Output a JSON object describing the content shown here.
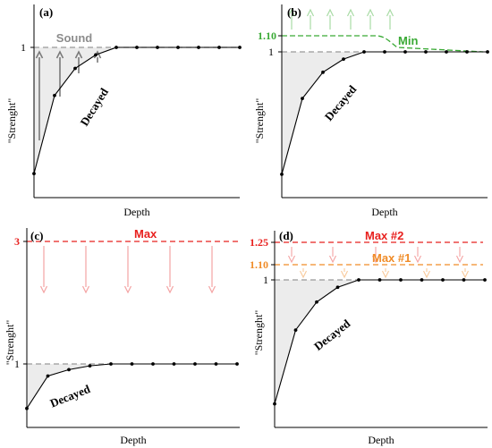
{
  "panels": [
    {
      "id": "a",
      "label": "(a)",
      "ylabel": "\"Strenght\"",
      "xlabel": "Depth",
      "ytick": "1",
      "curve_label": "Decayed",
      "reference": {
        "label": "Sound",
        "color": "#8c8c8c"
      },
      "strength": [
        0.16,
        0.68,
        0.86,
        0.95,
        1,
        1,
        1,
        1,
        1,
        1,
        1
      ],
      "arrows": {
        "direction": "up",
        "count": 4,
        "color": "#7a7a7a"
      }
    },
    {
      "id": "b",
      "label": "(b)",
      "ylabel": "\"Strenght\"",
      "xlabel": "Depth",
      "ytick": "1",
      "curve_label": "Decayed",
      "threshold": {
        "label": "Min",
        "value_label": "1.10",
        "color": "#3aaa35"
      },
      "strength": [
        0.16,
        0.68,
        0.86,
        0.95,
        1,
        1,
        1,
        1,
        1,
        1,
        1
      ],
      "arrows": {
        "direction": "up",
        "count": 6,
        "color": "#a8dba5"
      }
    },
    {
      "id": "c",
      "label": "(c)",
      "ylabel": "\"Strenght\"",
      "xlabel": "Depth",
      "ytick": "1",
      "curve_label": "Decayed",
      "threshold": {
        "label": "Max",
        "value_label": "3",
        "color": "#e8201e"
      },
      "strength": [
        0.3,
        0.81,
        0.91,
        0.97,
        1,
        1,
        1,
        1,
        1,
        1,
        1
      ],
      "arrows": {
        "direction": "down",
        "count": 5,
        "color": "#f4a3a3"
      }
    },
    {
      "id": "d",
      "label": "(d)",
      "ylabel": "\"Strenght\"",
      "xlabel": "Depth",
      "ytick": "1",
      "curve_label": "Decayed",
      "thresholds": [
        {
          "label": "Max #2",
          "value_label": "1.25",
          "color": "#e8201e"
        },
        {
          "label": "Max #1",
          "value_label": "1.10",
          "color": "#f08c28"
        }
      ],
      "strength": [
        0.16,
        0.66,
        0.85,
        0.95,
        1,
        1,
        1,
        1,
        1,
        1,
        1
      ],
      "arrows": {
        "direction": "down",
        "count": 5,
        "color": "#f4a3a3",
        "count_secondary": 6,
        "color_secondary": "#f8c99a"
      }
    }
  ]
}
